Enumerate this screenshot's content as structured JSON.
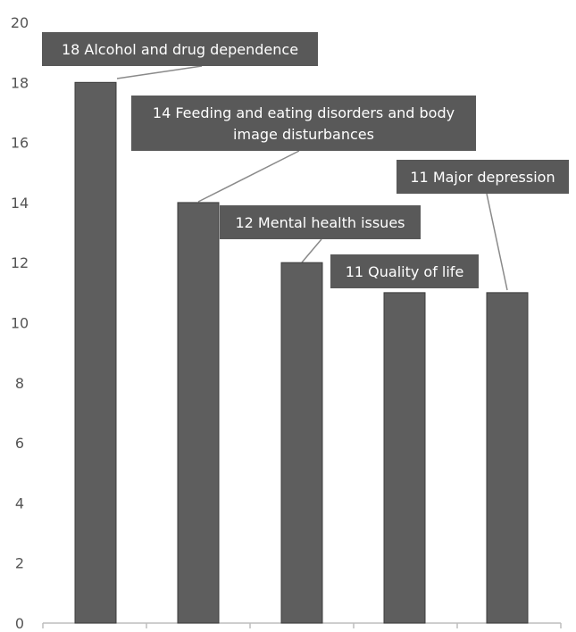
{
  "chart_data": {
    "type": "bar",
    "categories": [
      "Alcohol and drug dependence",
      "Feeding and eating disorders and body image disturbances",
      "Mental health issues",
      "Quality of life",
      "Major depression"
    ],
    "values": [
      18,
      14,
      12,
      11,
      11
    ],
    "data_labels": [
      [
        "18 Alcohol and drug dependence"
      ],
      [
        "14 Feeding and eating disorders and body",
        "image disturbances"
      ],
      [
        "12 Mental health issues"
      ],
      [
        "11 Quality of life"
      ],
      [
        "11 Major depression"
      ]
    ],
    "y_ticks": [
      "0",
      "2",
      "4",
      "6",
      "8",
      "10",
      "12",
      "14",
      "16",
      "18",
      "20"
    ],
    "ylim": [
      0,
      20
    ],
    "grid": false,
    "legend": "none",
    "title": "",
    "xlabel": "",
    "ylabel": "",
    "colors": {
      "bar": "#5e5e5e",
      "bar_stroke": "#3c3c3c",
      "label_box": "#595959",
      "label_text": "#ffffff",
      "axis": "#bdbdbd",
      "tick_text": "#555555",
      "leader": "#8a8a8a"
    }
  }
}
